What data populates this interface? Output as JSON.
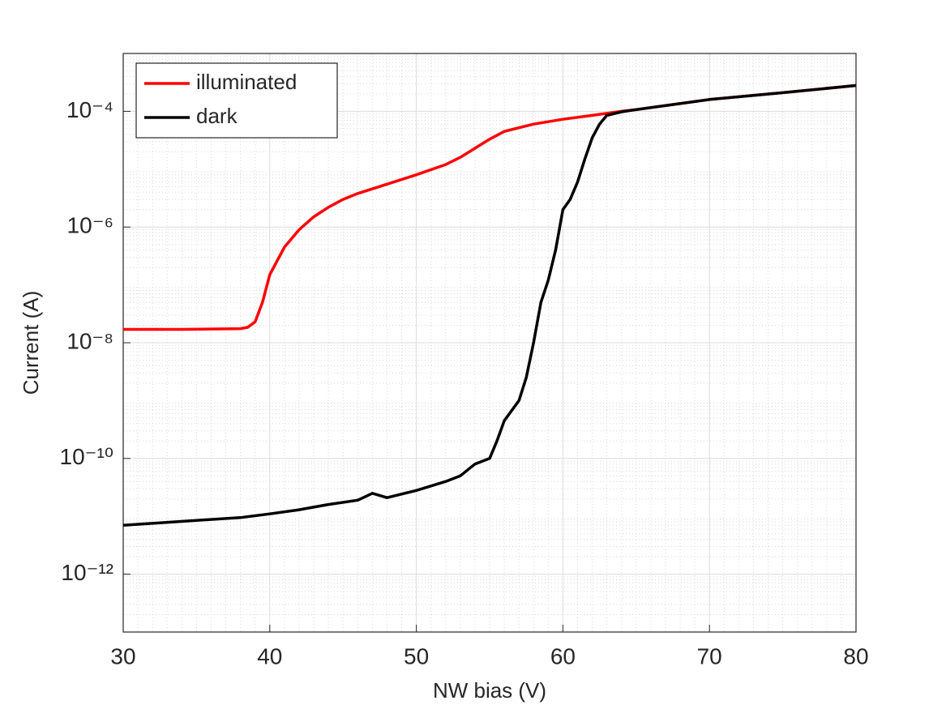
{
  "chart_data": {
    "type": "line",
    "xlabel": "NW bias (V)",
    "ylabel": "Current (A)",
    "xlim": [
      30,
      80
    ],
    "xticks": [
      30,
      40,
      50,
      60,
      70,
      80
    ],
    "ylim": [
      1e-13,
      0.001
    ],
    "log_y": true,
    "grid": true,
    "minor_grid": true,
    "legend": "upper left",
    "yticks": [
      {
        "value": 1e-12,
        "label": "10⁻¹²"
      },
      {
        "value": 1e-10,
        "label": "10⁻¹⁰"
      },
      {
        "value": 1e-08,
        "label": "10⁻⁸"
      },
      {
        "value": 1e-06,
        "label": "10⁻⁶"
      },
      {
        "value": 0.0001,
        "label": "10⁻⁴"
      }
    ],
    "series": [
      {
        "name": "illuminated",
        "color": "#ff0000",
        "x": [
          30,
          34,
          38,
          38.5,
          39,
          39.5,
          40,
          41,
          42,
          43,
          44,
          45,
          46,
          48,
          50,
          52,
          53,
          54,
          55,
          56,
          58,
          60,
          62,
          64,
          65,
          70,
          75,
          80
        ],
        "values": [
          1.7e-08,
          1.7e-08,
          1.75e-08,
          1.85e-08,
          2.3e-08,
          5e-08,
          1.5e-07,
          4.5e-07,
          9e-07,
          1.5e-06,
          2.2e-06,
          3e-06,
          3.8e-06,
          5.5e-06,
          8e-06,
          1.2e-05,
          1.6e-05,
          2.3e-05,
          3.3e-05,
          4.5e-05,
          6e-05,
          7.3e-05,
          8.5e-05,
          0.0001,
          0.000107,
          0.00016,
          0.00021,
          0.00028
        ]
      },
      {
        "name": "dark",
        "color": "#000000",
        "x": [
          30,
          35,
          38,
          40,
          42,
          44,
          46,
          47,
          48,
          50,
          52,
          53,
          54,
          55,
          55.5,
          56,
          57,
          57.5,
          58,
          58.5,
          59,
          59.5,
          60,
          60.5,
          61,
          61.5,
          62,
          62.5,
          63,
          64,
          65,
          70,
          75,
          80
        ],
        "values": [
          7e-12,
          8.5e-12,
          9.5e-12,
          1.1e-11,
          1.3e-11,
          1.6e-11,
          1.9e-11,
          2.5e-11,
          2.1e-11,
          2.8e-11,
          4e-11,
          5e-11,
          8e-11,
          1e-10,
          2e-10,
          4.5e-10,
          1e-09,
          2.5e-09,
          1e-08,
          5e-08,
          1.2e-07,
          4e-07,
          2e-06,
          3e-06,
          6e-06,
          1.5e-05,
          3.5e-05,
          6e-05,
          8.5e-05,
          9.8e-05,
          0.000107,
          0.00016,
          0.00021,
          0.00028
        ]
      }
    ]
  }
}
